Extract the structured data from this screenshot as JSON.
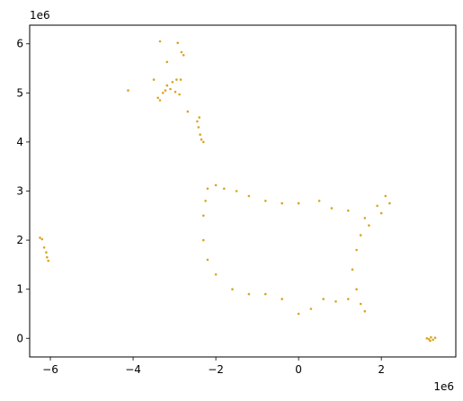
{
  "chart_data": {
    "type": "scatter",
    "title": "",
    "xlabel": "",
    "ylabel": "",
    "x_offset_label": "1e6",
    "y_offset_label": "1e6",
    "x_ticks": [
      -6,
      -4,
      -2,
      0,
      2
    ],
    "y_ticks": [
      0,
      1,
      2,
      3,
      4,
      5,
      6
    ],
    "xlim": [
      -6.5,
      3.8
    ],
    "ylim": [
      -0.38,
      6.38
    ],
    "grid": false,
    "legend": "none",
    "marker_color": "#DAA520",
    "series": [
      {
        "points": [
          [
            -3.35,
            6.05
          ],
          [
            -2.92,
            6.02
          ],
          [
            -2.83,
            5.83
          ],
          [
            -2.78,
            5.77
          ],
          [
            -3.18,
            5.63
          ],
          [
            -3.5,
            5.27
          ],
          [
            -2.95,
            5.27
          ],
          [
            -2.85,
            5.27
          ],
          [
            -3.05,
            5.22
          ],
          [
            -3.18,
            5.15
          ],
          [
            -3.1,
            5.08
          ],
          [
            -3.22,
            5.05
          ],
          [
            -3.28,
            5.0
          ],
          [
            -2.98,
            5.02
          ],
          [
            -2.88,
            4.97
          ],
          [
            -3.4,
            4.9
          ],
          [
            -3.35,
            4.85
          ],
          [
            -4.12,
            5.05
          ],
          [
            -2.68,
            4.62
          ],
          [
            -2.4,
            4.5
          ],
          [
            -2.45,
            4.42
          ],
          [
            -2.42,
            4.3
          ],
          [
            -2.38,
            4.15
          ],
          [
            -2.35,
            4.05
          ],
          [
            -2.3,
            4.0
          ],
          [
            -6.25,
            2.05
          ],
          [
            -6.2,
            2.02
          ],
          [
            -6.15,
            1.85
          ],
          [
            -6.1,
            1.75
          ],
          [
            -6.08,
            1.65
          ],
          [
            -6.05,
            1.58
          ],
          [
            3.1,
            0.0
          ],
          [
            3.15,
            -0.02
          ],
          [
            3.2,
            0.02
          ],
          [
            3.25,
            -0.03
          ],
          [
            3.3,
            0.01
          ],
          [
            3.18,
            -0.05
          ],
          [
            -2.2,
            3.05
          ],
          [
            -2.0,
            3.12
          ],
          [
            -1.8,
            3.05
          ],
          [
            -1.5,
            3.0
          ],
          [
            -1.2,
            2.9
          ],
          [
            -0.8,
            2.8
          ],
          [
            -0.4,
            2.75
          ],
          [
            0.0,
            2.75
          ],
          [
            0.5,
            2.8
          ],
          [
            0.8,
            2.65
          ],
          [
            1.2,
            2.6
          ],
          [
            1.6,
            2.45
          ],
          [
            1.9,
            2.7
          ],
          [
            2.1,
            2.9
          ],
          [
            2.2,
            2.75
          ],
          [
            2.0,
            2.55
          ],
          [
            1.7,
            2.3
          ],
          [
            1.5,
            2.1
          ],
          [
            1.4,
            1.8
          ],
          [
            1.3,
            1.4
          ],
          [
            1.4,
            1.0
          ],
          [
            1.5,
            0.7
          ],
          [
            1.6,
            0.55
          ],
          [
            1.2,
            0.8
          ],
          [
            0.9,
            0.75
          ],
          [
            0.6,
            0.8
          ],
          [
            0.3,
            0.6
          ],
          [
            0.0,
            0.5
          ],
          [
            -0.4,
            0.8
          ],
          [
            -0.8,
            0.9
          ],
          [
            -1.2,
            0.9
          ],
          [
            -1.6,
            1.0
          ],
          [
            -2.0,
            1.3
          ],
          [
            -2.2,
            1.6
          ],
          [
            -2.3,
            2.0
          ],
          [
            -2.3,
            2.5
          ],
          [
            -2.25,
            2.8
          ]
        ]
      }
    ]
  }
}
